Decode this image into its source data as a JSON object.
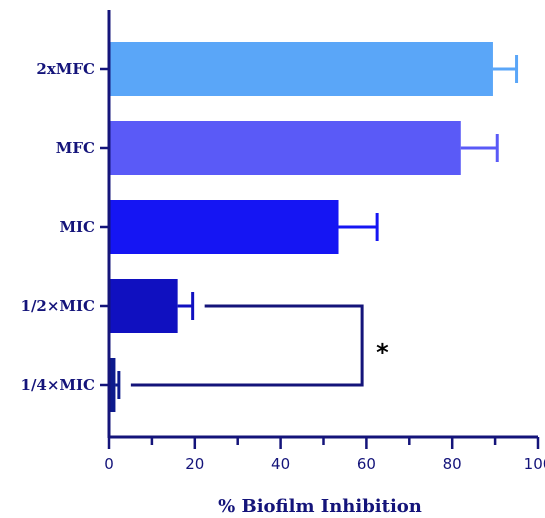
{
  "chart_data": {
    "type": "bar",
    "orientation": "horizontal",
    "categories": [
      "2xMFC",
      "MFC",
      "MIC",
      "1/2×MIC",
      "1/4×MIC"
    ],
    "series": [
      {
        "values": [
          89.5,
          82,
          53.5,
          16,
          1.5
        ],
        "errors": [
          5.5,
          8.5,
          9,
          3.5,
          0.8
        ],
        "colors": [
          "#5aa6f8",
          "#5a5af7",
          "#1515f3",
          "#1010c0",
          "#0d1a8c"
        ]
      }
    ],
    "xlabel": "% Biofilm Inhibition",
    "ylabel": "",
    "xlim": [
      0,
      100
    ],
    "x_ticks": [
      "0",
      "20",
      "40",
      "60",
      "80",
      "100"
    ],
    "grid": false,
    "legend": "none",
    "axis_color": "#14147a",
    "significance": {
      "between": [
        "1/2×MIC",
        "1/4×MIC"
      ],
      "bracket_at": 59,
      "label": "*"
    }
  }
}
